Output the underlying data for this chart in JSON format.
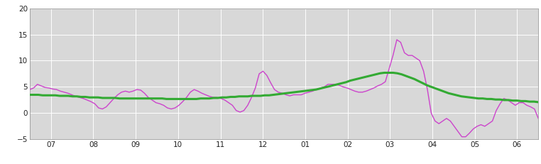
{
  "bg_color": "#ffffff",
  "plot_bg_color": "#d8d8d8",
  "x_tick_labels": [
    "07",
    "08",
    "09",
    "10",
    "11",
    "12",
    "01",
    "02",
    "03",
    "04",
    "05",
    "06"
  ],
  "ylim": [
    -5,
    20
  ],
  "yticks": [
    -5,
    0,
    5,
    10,
    15,
    20
  ],
  "purple_color": "#cc44cc",
  "green_color": "#33aa33",
  "purple_linewidth": 1.0,
  "green_linewidth": 2.2,
  "purple_data": [
    4.5,
    4.8,
    5.5,
    5.2,
    4.9,
    4.8,
    4.6,
    4.5,
    4.2,
    4.0,
    3.8,
    3.5,
    3.2,
    3.0,
    2.8,
    2.5,
    2.2,
    1.8,
    1.0,
    0.8,
    1.2,
    2.0,
    2.8,
    3.5,
    4.0,
    4.2,
    4.0,
    4.2,
    4.5,
    4.4,
    3.8,
    3.0,
    2.5,
    2.0,
    1.8,
    1.5,
    1.0,
    0.8,
    1.0,
    1.5,
    2.2,
    3.0,
    4.0,
    4.5,
    4.2,
    3.8,
    3.5,
    3.2,
    3.0,
    3.0,
    2.8,
    2.5,
    2.0,
    1.5,
    0.5,
    0.2,
    0.5,
    1.5,
    3.0,
    4.8,
    7.5,
    8.0,
    7.2,
    5.8,
    4.5,
    4.0,
    3.8,
    3.5,
    3.3,
    3.5,
    3.5,
    3.5,
    3.8,
    4.0,
    4.2,
    4.5,
    4.8,
    5.0,
    5.5,
    5.5,
    5.5,
    5.3,
    5.0,
    4.8,
    4.5,
    4.2,
    4.0,
    4.0,
    4.2,
    4.5,
    4.8,
    5.2,
    5.5,
    6.0,
    8.5,
    11.0,
    14.0,
    13.5,
    11.5,
    11.0,
    11.0,
    10.5,
    10.0,
    8.0,
    4.5,
    0.0,
    -1.5,
    -2.0,
    -1.5,
    -1.0,
    -1.5,
    -2.5,
    -3.5,
    -4.5,
    -4.5,
    -3.8,
    -3.0,
    -2.5,
    -2.2,
    -2.5,
    -2.0,
    -1.5,
    0.5,
    1.8,
    2.8,
    2.5,
    2.0,
    1.5,
    2.0,
    2.0,
    1.5,
    1.2,
    0.8,
    -1.0
  ],
  "green_data": [
    3.5,
    3.5,
    3.5,
    3.4,
    3.4,
    3.4,
    3.4,
    3.3,
    3.3,
    3.3,
    3.2,
    3.2,
    3.1,
    3.1,
    3.0,
    3.0,
    3.0,
    2.9,
    2.9,
    2.9,
    2.9,
    2.8,
    2.8,
    2.8,
    2.8,
    2.8,
    2.8,
    2.8,
    2.8,
    2.8,
    2.8,
    2.8,
    2.7,
    2.7,
    2.7,
    2.7,
    2.7,
    2.7,
    2.7,
    2.7,
    2.8,
    2.8,
    2.8,
    2.9,
    2.9,
    3.0,
    3.0,
    3.1,
    3.1,
    3.2,
    3.2,
    3.2,
    3.3,
    3.3,
    3.3,
    3.4,
    3.4,
    3.5,
    3.6,
    3.7,
    3.8,
    3.9,
    4.0,
    4.1,
    4.2,
    4.3,
    4.4,
    4.5,
    4.7,
    4.9,
    5.1,
    5.3,
    5.5,
    5.7,
    5.9,
    6.2,
    6.4,
    6.6,
    6.8,
    7.0,
    7.2,
    7.4,
    7.6,
    7.7,
    7.7,
    7.7,
    7.6,
    7.4,
    7.1,
    6.8,
    6.5,
    6.1,
    5.7,
    5.3,
    5.0,
    4.7,
    4.4,
    4.1,
    3.8,
    3.6,
    3.4,
    3.2,
    3.1,
    3.0,
    2.9,
    2.8,
    2.8,
    2.7,
    2.7,
    2.6,
    2.6,
    2.5,
    2.5,
    2.4,
    2.4,
    2.3,
    2.3,
    2.2,
    2.2,
    2.1
  ]
}
